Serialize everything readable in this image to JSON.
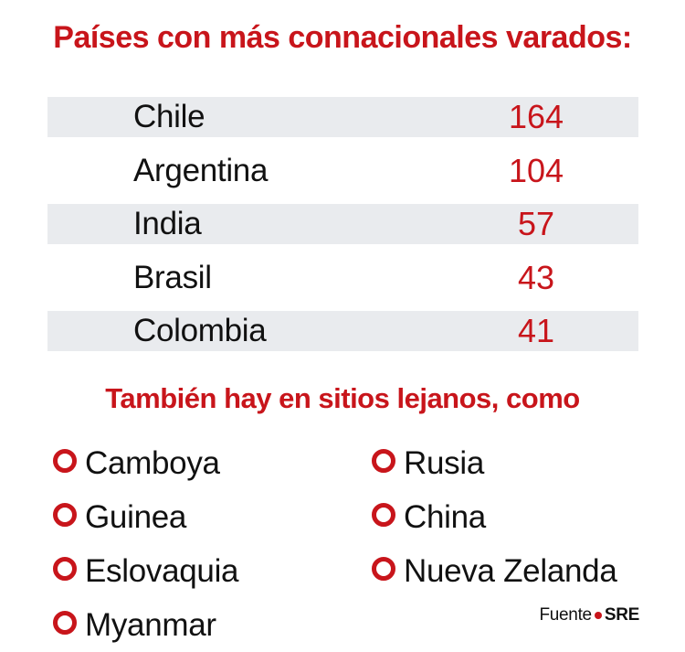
{
  "title": "Países con más connacionales varados:",
  "countries": [
    {
      "name": "Chile",
      "count": "164"
    },
    {
      "name": "Argentina",
      "count": "104"
    },
    {
      "name": "India",
      "count": "57"
    },
    {
      "name": "Brasil",
      "count": "43"
    },
    {
      "name": "Colombia",
      "count": "41"
    }
  ],
  "subtitle": "También hay en sitios lejanos, como",
  "places_left": [
    "Camboya",
    "Guinea",
    "Eslovaquia",
    "Myanmar"
  ],
  "places_right": [
    "Rusia",
    "China",
    "Nueva Zelanda"
  ],
  "source": {
    "label": "Fuente",
    "org": "SRE"
  },
  "colors": {
    "accent": "#c8151b",
    "row_shade": "#e9ebee",
    "text": "#111111"
  }
}
